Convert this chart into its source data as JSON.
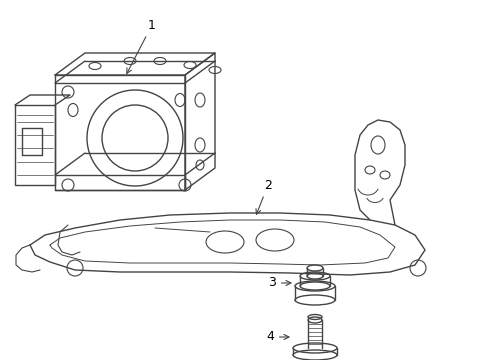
{
  "bg_color": "#ffffff",
  "line_color": "#444444",
  "label_color": "#000000",
  "lw": 1.0
}
